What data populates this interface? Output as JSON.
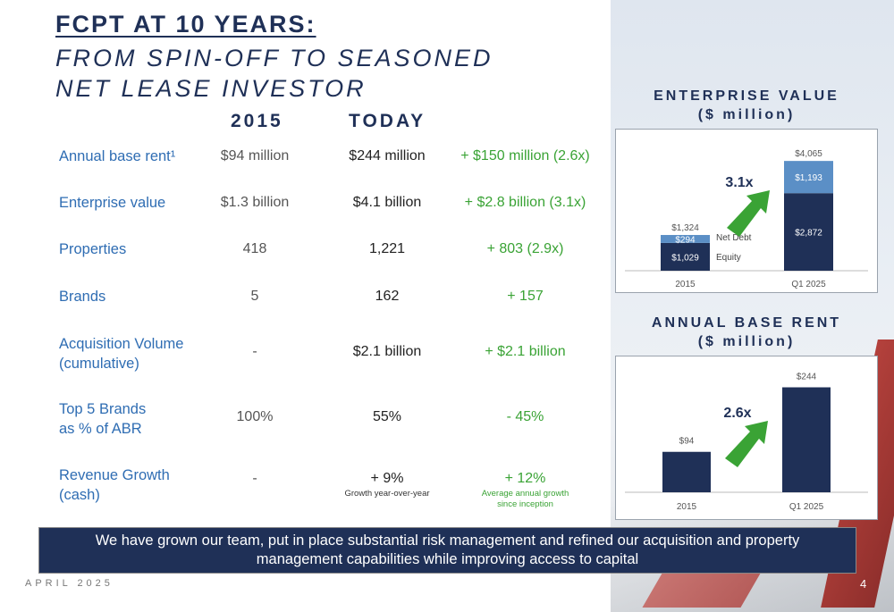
{
  "title": {
    "line1": "FCPT AT 10 YEARS:",
    "line2": "FROM SPIN-OFF TO SEASONED\nNET LEASE INVESTOR"
  },
  "columns": {
    "col2015": "2015",
    "today": "TODAY"
  },
  "rows": [
    {
      "label": "Annual base rent¹",
      "v2015": "$94 million",
      "today": "$244 million",
      "change": "+ $150 million (2.6x)"
    },
    {
      "label": "Enterprise value",
      "v2015": "$1.3 billion",
      "today": "$4.1 billion",
      "change": "+ $2.8 billion (3.1x)"
    },
    {
      "label": "Properties",
      "v2015": "418",
      "today": "1,221",
      "change": "+ 803  (2.9x)"
    },
    {
      "label": "Brands",
      "v2015": "5",
      "today": "162",
      "change": "+ 157"
    },
    {
      "label": "Acquisition Volume\n(cumulative)",
      "v2015": "-",
      "today": "$2.1 billion",
      "change": "+ $2.1 billion"
    },
    {
      "label": "Top 5 Brands\nas % of ABR",
      "v2015": "100%",
      "today": "55%",
      "change": "- 45%"
    },
    {
      "label": "Revenue Growth\n(cash)",
      "v2015": "-",
      "today": "+ 9%",
      "today_note": "Growth year-over-year",
      "change": "+ 12%",
      "change_note": "Average annual growth\nsince inception"
    }
  ],
  "banner": "We have grown our team, put in place substantial risk management and refined our acquisition and property management capabilities while improving access to capital",
  "footer": {
    "date": "APRIL 2025",
    "page": "4"
  },
  "colors": {
    "navy": "#1f3057",
    "lightblue": "#5b8fc6",
    "green": "#3aa335",
    "label_blue": "#2f6db3"
  },
  "chart_data": [
    {
      "type": "bar",
      "stacked": true,
      "title": "ENTERPRISE VALUE\n($ million)",
      "categories": [
        "2015",
        "Q1 2025"
      ],
      "series": [
        {
          "name": "Equity",
          "values": [
            1029,
            2872
          ],
          "labels": [
            "$1,029",
            "$2,872"
          ],
          "color": "#1f3057"
        },
        {
          "name": "Net Debt",
          "values": [
            294,
            1193
          ],
          "labels": [
            "$294",
            "$1,193"
          ],
          "color": "#5b8fc6"
        }
      ],
      "totals": [
        1324,
        4065
      ],
      "total_labels": [
        "$1,324",
        "$4,065"
      ],
      "annotation": "3.1x",
      "ylim": [
        0,
        4500
      ]
    },
    {
      "type": "bar",
      "title": "ANNUAL BASE RENT\n($ million)",
      "categories": [
        "2015",
        "Q1 2025"
      ],
      "values": [
        94,
        244
      ],
      "labels": [
        "$94",
        "$244"
      ],
      "color": "#1f3057",
      "annotation": "2.6x",
      "ylim": [
        0,
        270
      ]
    }
  ]
}
